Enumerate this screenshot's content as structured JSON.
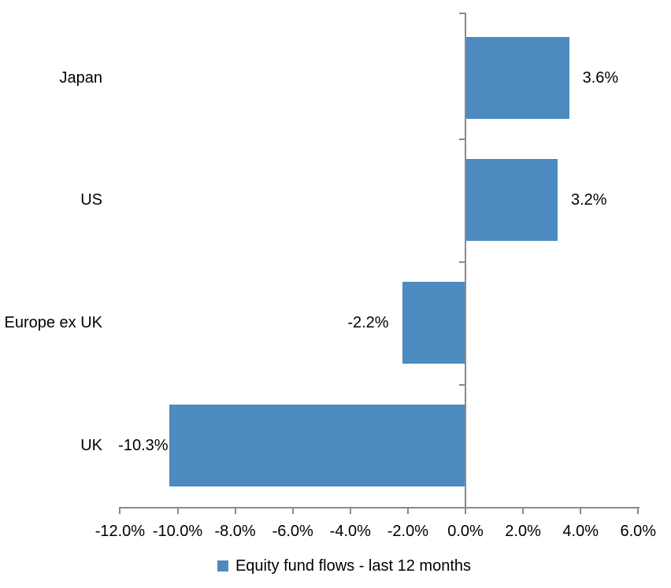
{
  "chart_data": {
    "type": "bar",
    "orientation": "horizontal",
    "categories": [
      "Japan",
      "US",
      "Europe ex UK",
      "UK"
    ],
    "values": [
      3.6,
      3.2,
      -2.2,
      -10.3
    ],
    "data_labels": [
      "3.6%",
      "3.2%",
      "-2.2%",
      "-10.3%"
    ],
    "series": [
      {
        "name": "Equity fund flows - last 12 months",
        "values": [
          3.6,
          3.2,
          -2.2,
          -10.3
        ]
      }
    ],
    "title": "",
    "xlabel": "",
    "ylabel": "",
    "xlim": [
      -12,
      6
    ],
    "tick_step": 2,
    "tick_labels": [
      "-12.0%",
      "-10.0%",
      "-8.0%",
      "-6.0%",
      "-4.0%",
      "-2.0%",
      "0.0%",
      "2.0%",
      "4.0%",
      "6.0%"
    ],
    "grid": false,
    "legend_position": "bottom",
    "bar_color": "#4d8abf",
    "axis_color": "#8a8a8a",
    "text_color": "#000000"
  },
  "legend": {
    "label": "Equity fund flows - last 12 months"
  }
}
